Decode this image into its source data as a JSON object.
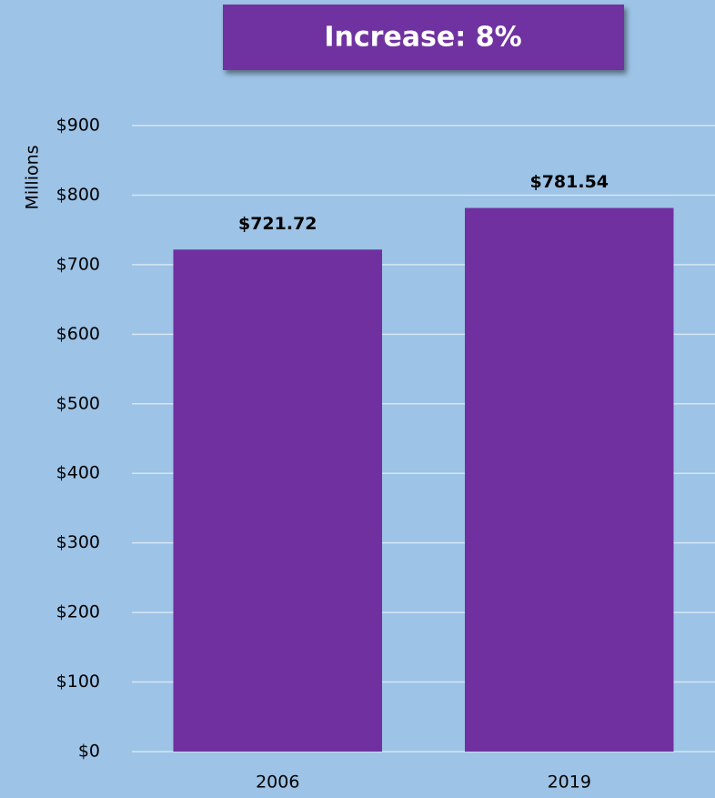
{
  "chart_data": {
    "type": "bar",
    "annotation": "Increase: 8%",
    "y_label": "Millions",
    "categories": [
      "2006",
      "2019"
    ],
    "values": [
      721.72,
      781.54
    ],
    "value_labels": [
      "$721.72",
      "$781.54"
    ],
    "color": "#7030A0",
    "ylim": [
      0,
      900
    ],
    "yticks": [
      {
        "value": 0,
        "label": "$0"
      },
      {
        "value": 100,
        "label": "$100"
      },
      {
        "value": 200,
        "label": "$200"
      },
      {
        "value": 300,
        "label": "$300"
      },
      {
        "value": 400,
        "label": "$400"
      },
      {
        "value": 500,
        "label": "$500"
      },
      {
        "value": 600,
        "label": "$600"
      },
      {
        "value": 700,
        "label": "$700"
      },
      {
        "value": 800,
        "label": "$800"
      },
      {
        "value": 900,
        "label": "$900"
      }
    ],
    "grid": true
  }
}
